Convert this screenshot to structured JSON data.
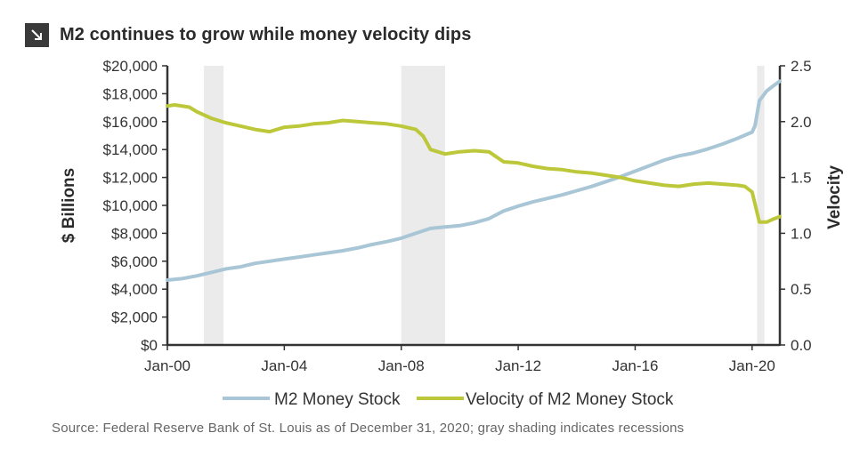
{
  "title": "M2 continues to grow while money velocity dips",
  "title_icon": "arrow-down-right-icon",
  "source": "Source: Federal Reserve Bank of St. Louis as of December 31, 2020; gray shading indicates recessions",
  "colors": {
    "m2": "#a9c6d6",
    "velocity": "#bcc83a",
    "recession": "#ebebeb",
    "axis": "#333333"
  },
  "chart_data": {
    "type": "line",
    "title": "M2 continues to grow while money velocity dips",
    "ylabel": "$ Billions",
    "y2label": "Velocity",
    "xlim": [
      2000.0,
      2020.95
    ],
    "ylim": [
      0,
      20000
    ],
    "y2lim": [
      0,
      2.5
    ],
    "x_tick_labels": [
      "Jan-00",
      "Jan-04",
      "Jan-08",
      "Jan-12",
      "Jan-16",
      "Jan-20"
    ],
    "x_tick_values": [
      2000,
      2004,
      2008,
      2012,
      2016,
      2020
    ],
    "y_tick_labels": [
      "$0",
      "$2,000",
      "$4,000",
      "$6,000",
      "$8,000",
      "$10,000",
      "$12,000",
      "$14,000",
      "$16,000",
      "$18,000",
      "$20,000"
    ],
    "y_tick_values": [
      0,
      2000,
      4000,
      6000,
      8000,
      10000,
      12000,
      14000,
      16000,
      18000,
      20000
    ],
    "y2_tick_labels": [
      "0.0",
      "0.5",
      "1.0",
      "1.5",
      "2.0",
      "2.5"
    ],
    "y2_tick_values": [
      0,
      0.5,
      1.0,
      1.5,
      2.0,
      2.5
    ],
    "recessions": [
      [
        2001.25,
        2001.92
      ],
      [
        2008.0,
        2009.5
      ],
      [
        2020.17,
        2020.42
      ]
    ],
    "legend": "bottom",
    "series": [
      {
        "name": "M2 Money Stock",
        "axis": "left",
        "x": [
          2000,
          2000.5,
          2001,
          2001.5,
          2002,
          2002.5,
          2003,
          2003.5,
          2004,
          2004.5,
          2005,
          2005.5,
          2006,
          2006.5,
          2007,
          2007.5,
          2008,
          2008.5,
          2009,
          2009.5,
          2010,
          2010.5,
          2011,
          2011.5,
          2012,
          2012.5,
          2013,
          2013.5,
          2014,
          2014.5,
          2015,
          2015.5,
          2016,
          2016.5,
          2017,
          2017.5,
          2018,
          2018.5,
          2019,
          2019.5,
          2020,
          2020.1,
          2020.25,
          2020.5,
          2020.75,
          2020.95
        ],
        "values": [
          4650,
          4750,
          4950,
          5200,
          5450,
          5600,
          5850,
          6000,
          6150,
          6300,
          6450,
          6600,
          6750,
          6950,
          7200,
          7400,
          7650,
          8000,
          8350,
          8450,
          8550,
          8750,
          9050,
          9600,
          9950,
          10250,
          10500,
          10750,
          11050,
          11350,
          11700,
          12050,
          12450,
          12850,
          13250,
          13550,
          13750,
          14050,
          14400,
          14800,
          15250,
          15700,
          17500,
          18200,
          18600,
          18900
        ]
      },
      {
        "name": "Velocity of M2 Money Stock",
        "axis": "right",
        "x": [
          2000,
          2000.25,
          2000.75,
          2001,
          2001.5,
          2002,
          2002.5,
          2003,
          2003.5,
          2004,
          2004.5,
          2005,
          2005.5,
          2006,
          2006.5,
          2007,
          2007.5,
          2008,
          2008.5,
          2008.75,
          2009,
          2009.5,
          2010,
          2010.5,
          2011,
          2011.5,
          2012,
          2012.5,
          2013,
          2013.5,
          2014,
          2014.5,
          2015,
          2015.5,
          2016,
          2016.5,
          2017,
          2017.5,
          2018,
          2018.5,
          2019,
          2019.5,
          2019.75,
          2020,
          2020.25,
          2020.5,
          2020.75,
          2020.95
        ],
        "values": [
          2.14,
          2.15,
          2.13,
          2.09,
          2.03,
          1.99,
          1.96,
          1.93,
          1.91,
          1.95,
          1.96,
          1.98,
          1.99,
          2.01,
          2.0,
          1.99,
          1.98,
          1.96,
          1.93,
          1.87,
          1.75,
          1.71,
          1.73,
          1.74,
          1.73,
          1.64,
          1.63,
          1.6,
          1.58,
          1.57,
          1.55,
          1.54,
          1.52,
          1.5,
          1.47,
          1.45,
          1.43,
          1.42,
          1.44,
          1.45,
          1.44,
          1.43,
          1.42,
          1.37,
          1.1,
          1.1,
          1.13,
          1.15
        ]
      }
    ]
  }
}
